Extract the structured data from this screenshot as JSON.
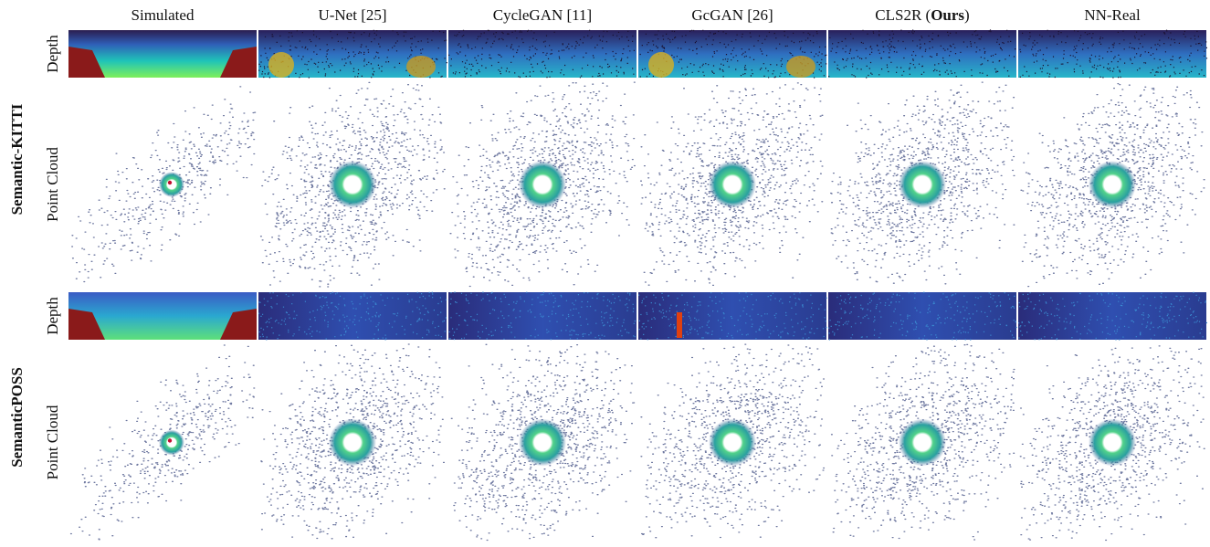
{
  "header": {
    "columns": [
      "Simulated",
      "U-Net [25]",
      "CycleGAN [11]",
      "GcGAN [26]",
      {
        "prefix": "CLS2R (",
        "bold": "Ours",
        "suffix": ")"
      },
      "NN-Real"
    ]
  },
  "datasets": [
    {
      "name": "Semantic-KITTI",
      "rows": [
        "Depth",
        "Point Cloud"
      ]
    },
    {
      "name": "SemanticPOSS",
      "rows": [
        "Depth",
        "Point Cloud"
      ]
    }
  ]
}
